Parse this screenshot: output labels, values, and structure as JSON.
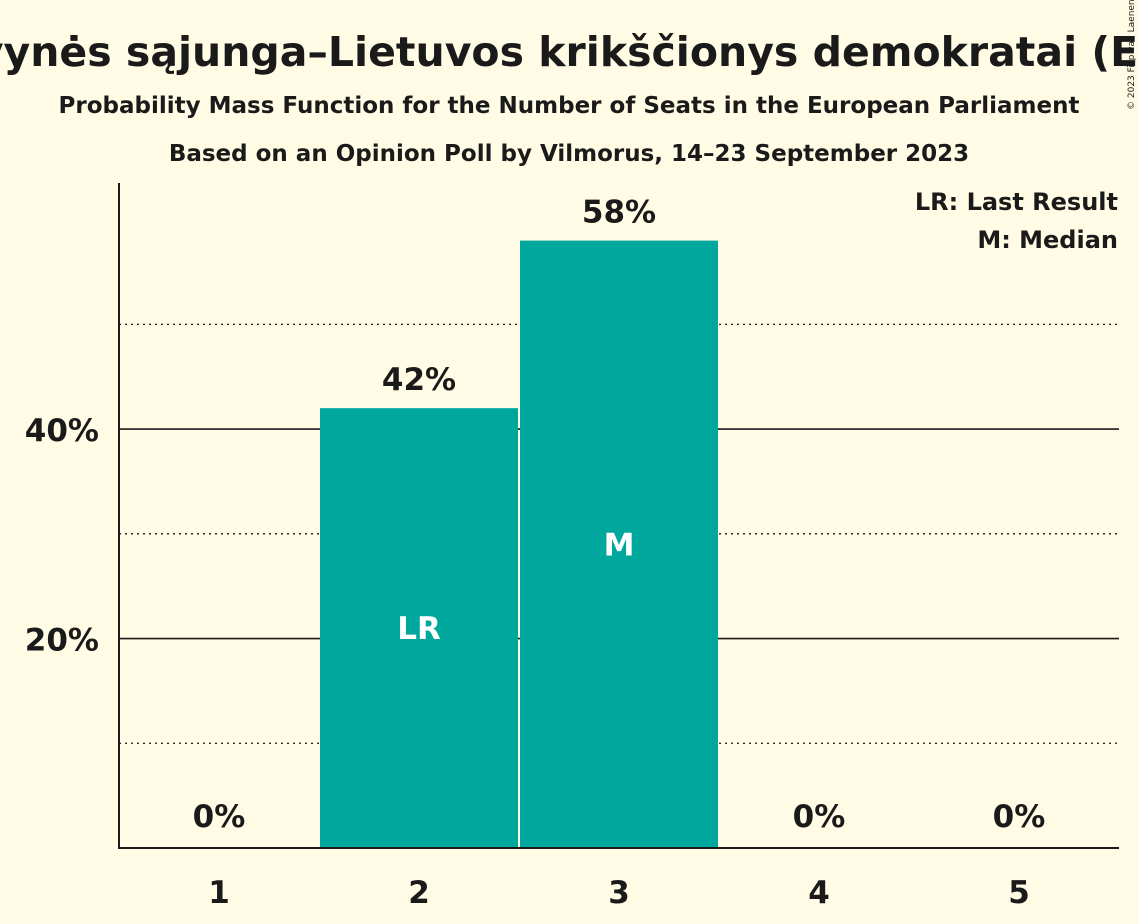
{
  "chart_data": {
    "type": "bar",
    "title": "Tėvynės sąjunga–Lietuvos krikščionys demokratai (EPP)",
    "subtitle": "Probability Mass Function for the Number of Seats in the European Parliament",
    "subtitle2": "Based on an Opinion Poll by Vilmorus, 14–23 September 2023",
    "copyright": "© 2023 Filip van Laenen",
    "categories": [
      "1",
      "2",
      "3",
      "4",
      "5"
    ],
    "values": [
      0,
      42,
      58,
      0,
      0
    ],
    "value_labels": [
      "0%",
      "42%",
      "58%",
      "0%",
      "0%"
    ],
    "bar_marks": [
      "",
      "LR",
      "M",
      "",
      ""
    ],
    "ylim": [
      0,
      63.5
    ],
    "yticks": [
      20,
      40
    ],
    "ytick_labels": [
      "20%",
      "40%"
    ],
    "minor_gridlines": [
      10,
      30,
      50
    ],
    "legend": [
      "LR: Last Result",
      "M: Median"
    ],
    "legend_position": "top-right",
    "bar_color": "#00A79D",
    "grid": true
  }
}
